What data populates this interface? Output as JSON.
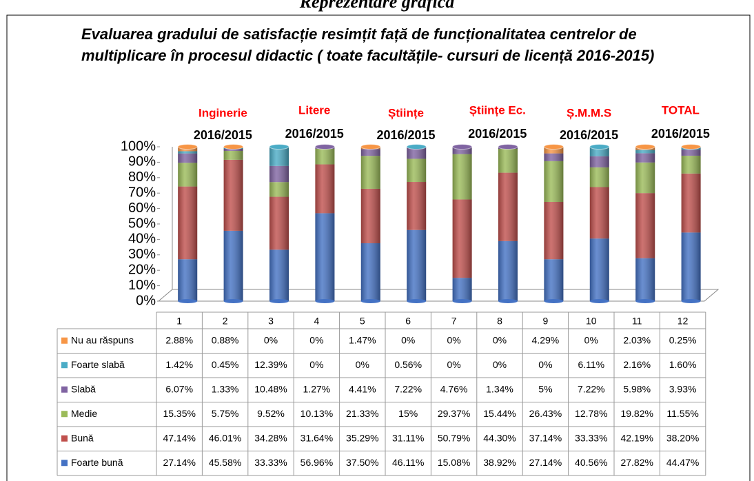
{
  "heading": "Reprezentare grafică",
  "chart_data": {
    "type": "stacked-bar",
    "title": "Evaluarea gradului de satisfacție resimțit față de funcționalitatea centrelor de multiplicare în procesul didactic ( toate facultățile- cursuri de licență 2016-2015)",
    "groups": [
      {
        "label": "Inginerie",
        "period": "2016/2015"
      },
      {
        "label": "Litere",
        "period": "2016/2015"
      },
      {
        "label": "Științe",
        "period": "2016/2015"
      },
      {
        "label": "Științe Ec.",
        "period": "2016/2015"
      },
      {
        "label": "Ș.M.M.S",
        "period": "2016/2015"
      },
      {
        "label": "TOTAL",
        "period": "2016/2015"
      }
    ],
    "categories": [
      "1",
      "2",
      "3",
      "4",
      "5",
      "6",
      "7",
      "8",
      "9",
      "10",
      "11",
      "12"
    ],
    "ylim": [
      0,
      100
    ],
    "yticks": [
      {
        "value": 0,
        "label": "0%"
      },
      {
        "value": 10,
        "label": "10%"
      },
      {
        "value": 20,
        "label": "20%"
      },
      {
        "value": 30,
        "label": "30%"
      },
      {
        "value": 40,
        "label": "40%"
      },
      {
        "value": 50,
        "label": "50%"
      },
      {
        "value": 60,
        "label": "60%"
      },
      {
        "value": 70,
        "label": "70%"
      },
      {
        "value": 80,
        "label": "80%"
      },
      {
        "value": 90,
        "label": "90%"
      },
      {
        "value": 100,
        "label": "100%"
      }
    ],
    "series": [
      {
        "name": "Foarte bună",
        "color": "#4472c4",
        "values": [
          27.14,
          45.58,
          33.33,
          56.96,
          37.5,
          46.11,
          15.08,
          38.92,
          27.14,
          40.56,
          27.82,
          44.47
        ],
        "value_labels": [
          "27.14%",
          "45.58%",
          "33.33%",
          "56.96%",
          "37.50%",
          "46.11%",
          "15.08%",
          "38.92%",
          "27.14%",
          "40.56%",
          "27.82%",
          "44.47%"
        ]
      },
      {
        "name": "Bună",
        "color": "#c0504d",
        "values": [
          47.14,
          46.01,
          34.28,
          31.64,
          35.29,
          31.11,
          50.79,
          44.3,
          37.14,
          33.33,
          42.19,
          38.2
        ],
        "value_labels": [
          "47.14%",
          "46.01%",
          "34.28%",
          "31.64%",
          "35.29%",
          "31.11%",
          "50.79%",
          "44.30%",
          "37.14%",
          "33.33%",
          "42.19%",
          "38.20%"
        ]
      },
      {
        "name": "Medie",
        "color": "#9bbb59",
        "values": [
          15.35,
          5.75,
          9.52,
          10.13,
          21.33,
          15,
          29.37,
          15.44,
          26.43,
          12.78,
          19.82,
          11.55
        ],
        "value_labels": [
          "15.35%",
          "5.75%",
          "9.52%",
          "10.13%",
          "21.33%",
          "15%",
          "29.37%",
          "15.44%",
          "26.43%",
          "12.78%",
          "19.82%",
          "11.55%"
        ]
      },
      {
        "name": "Slabă",
        "color": "#8064a2",
        "values": [
          6.07,
          1.33,
          10.48,
          1.27,
          4.41,
          7.22,
          4.76,
          1.34,
          5,
          7.22,
          5.98,
          3.93
        ],
        "value_labels": [
          "6.07%",
          "1.33%",
          "10.48%",
          "1.27%",
          "4.41%",
          "7.22%",
          "4.76%",
          "1.34%",
          "5%",
          "7.22%",
          "5.98%",
          "3.93%"
        ]
      },
      {
        "name": "Foarte slabă",
        "color": "#4bacc6",
        "values": [
          1.42,
          0.45,
          12.39,
          0,
          0,
          0.56,
          0,
          0,
          0,
          6.11,
          2.16,
          1.6
        ],
        "value_labels": [
          "1.42%",
          "0.45%",
          "12.39%",
          "0%",
          "0%",
          "0.56%",
          "0%",
          "0%",
          "0%",
          "6.11%",
          "2.16%",
          "1.60%"
        ]
      },
      {
        "name": "Nu au răspuns",
        "color": "#f79646",
        "values": [
          2.88,
          0.88,
          0,
          0,
          1.47,
          0,
          0,
          0,
          4.29,
          0,
          2.03,
          0.25
        ],
        "value_labels": [
          "2.88%",
          "0.88%",
          "0%",
          "0%",
          "1.47%",
          "0%",
          "0%",
          "0%",
          "4.29%",
          "0%",
          "2.03%",
          "0.25%"
        ]
      }
    ]
  }
}
